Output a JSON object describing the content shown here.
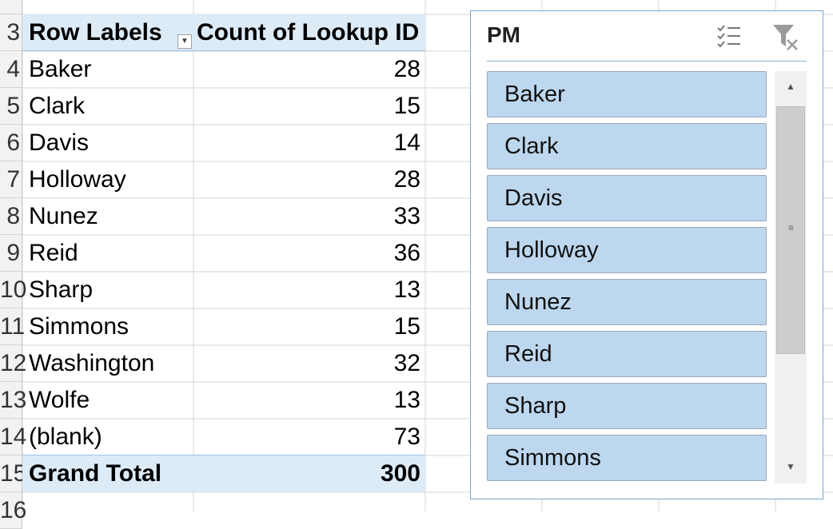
{
  "pivot": {
    "header": {
      "row_num": "3",
      "labels_header": "Row Labels",
      "value_header": "Count of Lookup ID"
    },
    "rows": [
      {
        "row_num": "4",
        "label": "Baker",
        "value": "28"
      },
      {
        "row_num": "5",
        "label": "Clark",
        "value": "15"
      },
      {
        "row_num": "6",
        "label": "Davis",
        "value": "14"
      },
      {
        "row_num": "7",
        "label": "Holloway",
        "value": "28"
      },
      {
        "row_num": "8",
        "label": "Nunez",
        "value": "33"
      },
      {
        "row_num": "9",
        "label": "Reid",
        "value": "36"
      },
      {
        "row_num": "10",
        "label": "Sharp",
        "value": "13"
      },
      {
        "row_num": "11",
        "label": "Simmons",
        "value": "15"
      },
      {
        "row_num": "12",
        "label": "Washington",
        "value": "32"
      },
      {
        "row_num": "13",
        "label": "Wolfe",
        "value": "13"
      },
      {
        "row_num": "14",
        "label": "(blank)",
        "value": "73"
      }
    ],
    "total": {
      "row_num": "15",
      "label": "Grand Total",
      "value": "300"
    },
    "after_rows": [
      "16"
    ]
  },
  "slicer": {
    "title": "PM",
    "items": [
      "Baker",
      "Clark",
      "Davis",
      "Holloway",
      "Nunez",
      "Reid",
      "Sharp",
      "Simmons"
    ],
    "icons": {
      "multi_select": "multi-select-icon",
      "clear_filter": "clear-filter-icon"
    }
  },
  "colors": {
    "header_band": "#ddebf7",
    "slicer_item": "#bdd7ee",
    "slicer_border": "#7aa7cc"
  }
}
